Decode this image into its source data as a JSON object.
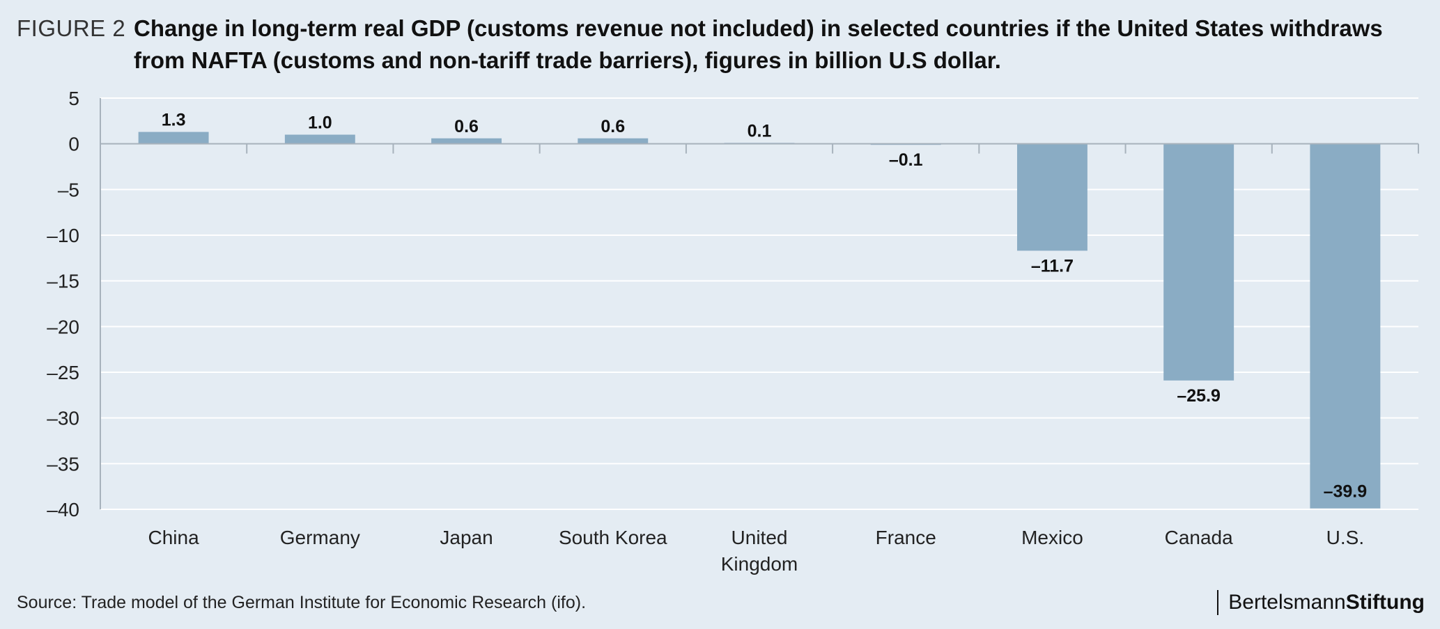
{
  "header": {
    "figure_label": "FIGURE 2",
    "title_line1": "Change in long-term real GDP (customs revenue not included) in selected countries if the United States withdraws",
    "title_line2": "from NAFTA (customs and non-tariff trade barriers), figures in billion U.S dollar."
  },
  "footer": {
    "source": "Source: Trade model of the German Institute for Economic Research (ifo).",
    "brand_part1": "Bertelsmann",
    "brand_part2": "Stiftung"
  },
  "colors": {
    "background": "#e4ecf3",
    "bar": "#8aacc4",
    "grid": "#ffffff",
    "axis": "#a7b2bc"
  },
  "chart_data": {
    "type": "bar",
    "categories": [
      [
        "China"
      ],
      [
        "Germany"
      ],
      [
        "Japan"
      ],
      [
        "South Korea"
      ],
      [
        "United",
        "Kingdom"
      ],
      [
        "France"
      ],
      [
        "Mexico"
      ],
      [
        "Canada"
      ],
      [
        "U.S."
      ]
    ],
    "values": [
      1.3,
      1.0,
      0.6,
      0.6,
      0.1,
      -0.1,
      -11.7,
      -25.9,
      -39.9
    ],
    "value_labels": [
      "1.3",
      "1.0",
      "0.6",
      "0.6",
      "0.1",
      "–0.1",
      "–11.7",
      "–25.9",
      "–39.9"
    ],
    "ylim": [
      -40,
      5
    ],
    "yticks": [
      5,
      0,
      -5,
      -10,
      -15,
      -20,
      -25,
      -30,
      -35,
      -40
    ],
    "ytick_labels": [
      "5",
      "0",
      "–5",
      "–10",
      "–15",
      "–20",
      "–25",
      "–30",
      "–35",
      "–40"
    ],
    "grid": true
  }
}
